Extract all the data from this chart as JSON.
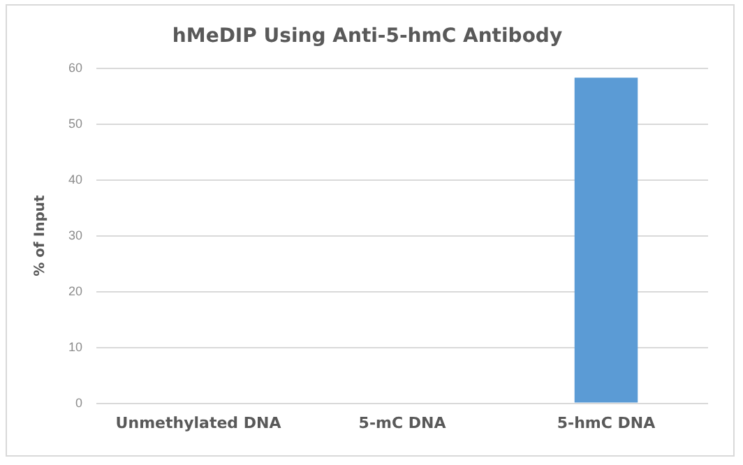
{
  "chart_data": {
    "type": "bar",
    "title": "hMeDIP Using Anti-5-hmC Antibody",
    "ylabel": "% of Input",
    "categories": [
      "Unmethylated DNA",
      "5-mC DNA",
      "5-hmC DNA"
    ],
    "values": [
      0,
      0,
      58.3
    ],
    "color": "#5b9bd5",
    "ylim": [
      0,
      60
    ],
    "yticks": [
      0,
      10,
      20,
      30,
      40,
      50,
      60
    ],
    "grid": "y",
    "legend": false
  }
}
